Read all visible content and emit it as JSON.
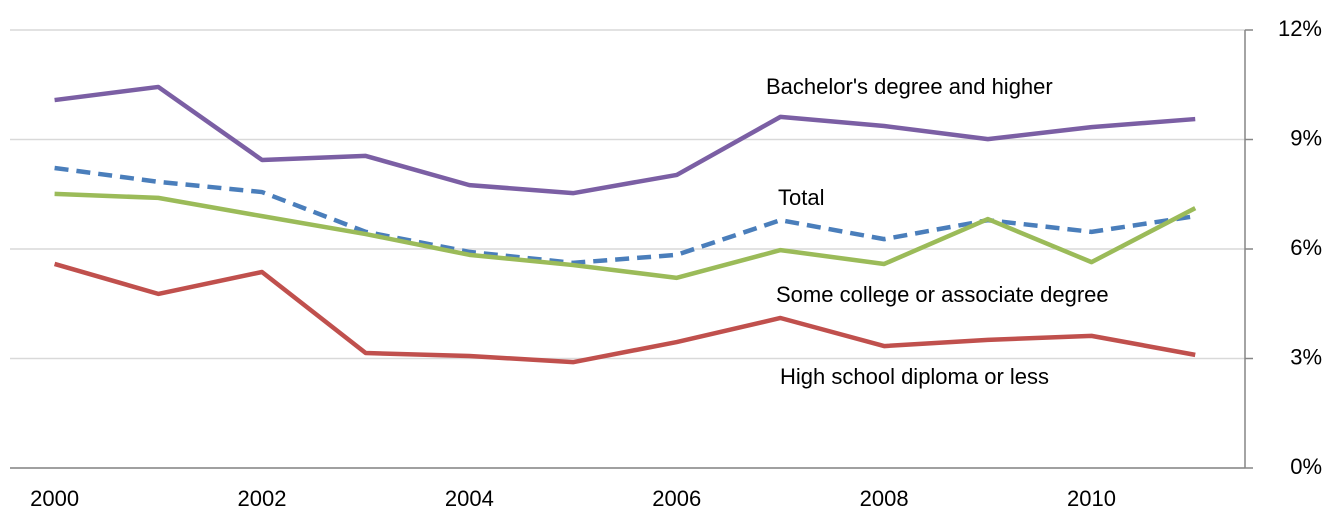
{
  "chart_data": {
    "type": "line",
    "x": [
      2000,
      2001,
      2002,
      2003,
      2004,
      2005,
      2006,
      2007,
      2008,
      2009,
      2010,
      2011
    ],
    "xlim": [
      1999.57,
      2011.48
    ],
    "xticks": [
      2000,
      2002,
      2004,
      2006,
      2008,
      2010
    ],
    "ylim": [
      0,
      12
    ],
    "yticks": [
      {
        "value": 0,
        "label": "0%"
      },
      {
        "value": 3,
        "label": "3%"
      },
      {
        "value": 6,
        "label": "6%"
      },
      {
        "value": 9,
        "label": "9%"
      },
      {
        "value": 12,
        "label": "12%"
      }
    ],
    "grid": true,
    "y_axis_side": "right",
    "series": [
      {
        "name": "Bachelor's degree and higher",
        "color": "#7b5fa4",
        "line_style": "solid",
        "values": [
          10.08,
          10.44,
          8.44,
          8.55,
          7.75,
          7.53,
          8.03,
          9.62,
          9.37,
          9.01,
          9.34,
          9.56
        ]
      },
      {
        "name": "Total",
        "color": "#4a7ebb",
        "line_style": "dashed",
        "values": [
          8.22,
          7.84,
          7.56,
          6.47,
          5.92,
          5.62,
          5.84,
          6.79,
          6.27,
          6.79,
          6.47,
          6.9
        ]
      },
      {
        "name": "Some college or associate degree",
        "color": "#9bbb59",
        "line_style": "solid",
        "values": [
          7.51,
          7.4,
          6.9,
          6.41,
          5.84,
          5.56,
          5.21,
          5.97,
          5.59,
          6.82,
          5.64,
          7.12
        ]
      },
      {
        "name": "High school diploma or less",
        "color": "#c0504d",
        "line_style": "solid",
        "values": [
          5.59,
          4.77,
          5.37,
          3.15,
          3.07,
          2.9,
          3.45,
          4.11,
          3.34,
          3.51,
          3.62,
          3.1
        ]
      }
    ]
  }
}
